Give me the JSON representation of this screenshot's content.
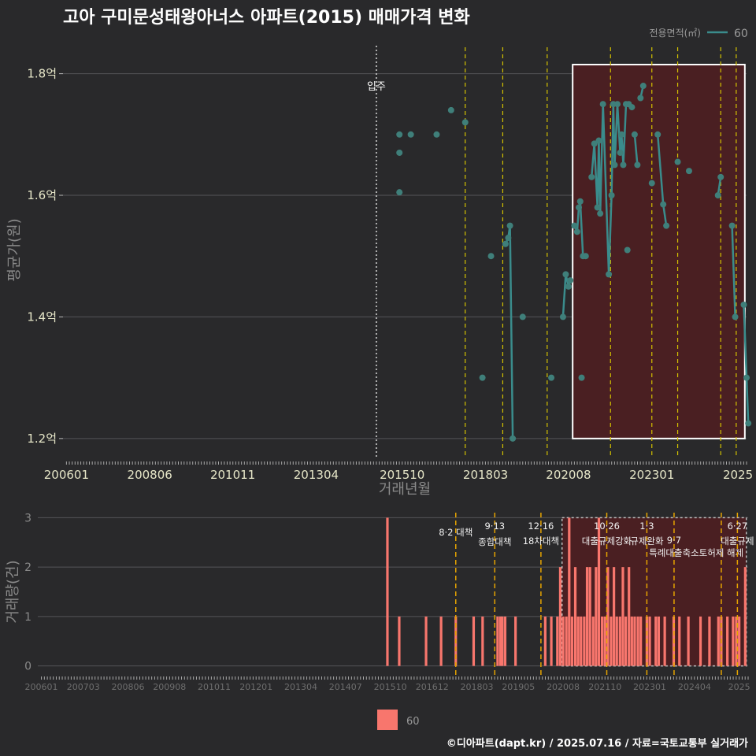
{
  "title": "고아 구미문성태왕아너스 아파트(2015) 매매가격 변화",
  "legend_top": {
    "title": "전용면적(㎡)",
    "label": "60"
  },
  "legend_bottom": {
    "label": "60"
  },
  "footer": "©디아파트(dapt.kr) / 2025.07.16 / 자료=국토교통부 실거래가",
  "colors": {
    "background": "#29292b",
    "price_line": "#3a8c8c",
    "price_point": "#3f7f7a",
    "bar": "#f8766d",
    "policy_line": "#d4c200",
    "policy_line_bottom": "#e6a400",
    "highlight_fill": "#4a1f22",
    "grid": "#555558",
    "move_in_line": "#d9d9d9"
  },
  "chart_data": [
    {
      "type": "line",
      "title": "고아 구미문성태왕아너스 아파트(2015) 매매가격 변화",
      "xlabel": "거래년월",
      "ylabel": "평균가(원)",
      "ylim": [
        1.17,
        1.85
      ],
      "xlim": [
        2005.9,
        2025.75
      ],
      "x_ticks": [
        {
          "label": "200601",
          "x": 2006.0
        },
        {
          "label": "200806",
          "x": 2008.42
        },
        {
          "label": "201011",
          "x": 2010.83
        },
        {
          "label": "201304",
          "x": 2013.25
        },
        {
          "label": "201510",
          "x": 2015.75
        },
        {
          "label": "201803",
          "x": 2018.17
        },
        {
          "label": "202008",
          "x": 2020.58
        },
        {
          "label": "202301",
          "x": 2023.0
        },
        {
          "label": "2025",
          "x": 2025.5
        }
      ],
      "y_ticks": [
        {
          "label": "1.2억",
          "y": 1.2
        },
        {
          "label": "1.4억",
          "y": 1.4
        },
        {
          "label": "1.6억",
          "y": 1.6
        },
        {
          "label": "1.8억",
          "y": 1.8
        }
      ],
      "annotation": {
        "label": "입주",
        "x": 2015.0
      },
      "highlight": {
        "x_start": 2020.7,
        "x_end": 2025.7,
        "y_start": 1.2,
        "y_end": 1.815
      },
      "policy_lines_x": [
        2017.58,
        2018.67,
        2019.96,
        2021.8,
        2023.0,
        2023.75,
        2025.0,
        2025.45
      ],
      "series": [
        {
          "name": "60",
          "points": [
            [
              2015.67,
              1.7
            ],
            [
              2015.67,
              1.67
            ],
            [
              2015.67,
              1.605
            ],
            [
              2016.0,
              1.7
            ],
            [
              2016.75,
              1.7
            ],
            [
              2017.17,
              1.74
            ],
            [
              2017.58,
              1.72
            ],
            [
              2018.08,
              1.3
            ],
            [
              2018.33,
              1.5
            ],
            [
              2018.75,
              1.52
            ],
            [
              2018.83,
              1.53
            ],
            [
              2018.88,
              1.55
            ],
            [
              2018.96,
              1.2
            ],
            [
              2019.25,
              1.4
            ],
            [
              2020.08,
              1.3
            ],
            [
              2020.42,
              1.4
            ],
            [
              2020.5,
              1.47
            ],
            [
              2020.58,
              1.45
            ],
            [
              2020.63,
              1.46
            ],
            [
              2020.75,
              1.55
            ],
            [
              2020.83,
              1.54
            ],
            [
              2020.88,
              1.58
            ],
            [
              2020.92,
              1.59
            ],
            [
              2020.96,
              1.3
            ],
            [
              2021.0,
              1.5
            ],
            [
              2021.08,
              1.5
            ],
            [
              2021.25,
              1.63
            ],
            [
              2021.33,
              1.685
            ],
            [
              2021.42,
              1.58
            ],
            [
              2021.46,
              1.69
            ],
            [
              2021.5,
              1.57
            ],
            [
              2021.58,
              1.75
            ],
            [
              2021.75,
              1.47
            ],
            [
              2021.83,
              1.6
            ],
            [
              2021.88,
              1.75
            ],
            [
              2021.92,
              1.65
            ],
            [
              2022.0,
              1.75
            ],
            [
              2022.08,
              1.67
            ],
            [
              2022.12,
              1.7
            ],
            [
              2022.17,
              1.65
            ],
            [
              2022.25,
              1.75
            ],
            [
              2022.29,
              1.51
            ],
            [
              2022.33,
              1.75
            ],
            [
              2022.42,
              1.745
            ],
            [
              2022.5,
              1.7
            ],
            [
              2022.58,
              1.65
            ],
            [
              2022.67,
              1.76
            ],
            [
              2022.75,
              1.78
            ],
            [
              2023.0,
              1.62
            ],
            [
              2023.17,
              1.7
            ],
            [
              2023.33,
              1.585
            ],
            [
              2023.42,
              1.55
            ],
            [
              2023.75,
              1.655
            ],
            [
              2024.08,
              1.64
            ],
            [
              2024.92,
              1.6
            ],
            [
              2025.0,
              1.63
            ],
            [
              2025.33,
              1.55
            ],
            [
              2025.42,
              1.4
            ],
            [
              2025.67,
              1.42
            ],
            [
              2025.75,
              1.3
            ],
            [
              2025.8,
              1.225
            ]
          ],
          "segments": [
            [
              [
                2018.75,
                1.52
              ],
              [
                2018.83,
                1.53
              ],
              [
                2018.88,
                1.55
              ],
              [
                2018.96,
                1.2
              ]
            ],
            [
              [
                2020.42,
                1.4
              ],
              [
                2020.5,
                1.47
              ],
              [
                2020.58,
                1.45
              ],
              [
                2020.63,
                1.46
              ]
            ],
            [
              [
                2020.75,
                1.55
              ],
              [
                2020.83,
                1.54
              ],
              [
                2020.88,
                1.58
              ],
              [
                2020.92,
                1.59
              ],
              [
                2021.0,
                1.5
              ]
            ],
            [
              [
                2021.25,
                1.63
              ],
              [
                2021.33,
                1.685
              ],
              [
                2021.42,
                1.58
              ],
              [
                2021.46,
                1.69
              ],
              [
                2021.5,
                1.57
              ],
              [
                2021.58,
                1.75
              ],
              [
                2021.75,
                1.47
              ],
              [
                2021.83,
                1.6
              ],
              [
                2021.88,
                1.75
              ],
              [
                2021.92,
                1.65
              ],
              [
                2022.0,
                1.75
              ],
              [
                2022.08,
                1.67
              ],
              [
                2022.12,
                1.7
              ],
              [
                2022.17,
                1.65
              ],
              [
                2022.25,
                1.75
              ]
            ],
            [
              [
                2022.33,
                1.75
              ],
              [
                2022.42,
                1.745
              ]
            ],
            [
              [
                2022.5,
                1.7
              ],
              [
                2022.58,
                1.65
              ]
            ],
            [
              [
                2022.67,
                1.76
              ],
              [
                2022.75,
                1.78
              ]
            ],
            [
              [
                2023.17,
                1.7
              ],
              [
                2023.33,
                1.585
              ],
              [
                2023.42,
                1.55
              ]
            ],
            [
              [
                2024.92,
                1.6
              ],
              [
                2025.0,
                1.63
              ]
            ],
            [
              [
                2025.33,
                1.55
              ],
              [
                2025.42,
                1.4
              ]
            ],
            [
              [
                2025.67,
                1.42
              ],
              [
                2025.75,
                1.3
              ],
              [
                2025.8,
                1.225
              ]
            ]
          ]
        }
      ]
    },
    {
      "type": "bar",
      "ylabel": "거래량(건)",
      "ylim": [
        -0.15,
        3.15
      ],
      "xlim": [
        2005.9,
        2025.75
      ],
      "x_ticks": [
        {
          "label": "200601",
          "x": 2006.0
        },
        {
          "label": "200703",
          "x": 2007.17
        },
        {
          "label": "200806",
          "x": 2008.42
        },
        {
          "label": "200908",
          "x": 2009.58
        },
        {
          "label": "201011",
          "x": 2010.83
        },
        {
          "label": "201201",
          "x": 2012.0
        },
        {
          "label": "201304",
          "x": 2013.25
        },
        {
          "label": "201407",
          "x": 2014.5
        },
        {
          "label": "201510",
          "x": 2015.75
        },
        {
          "label": "201612",
          "x": 2016.92
        },
        {
          "label": "201803",
          "x": 2018.17
        },
        {
          "label": "201905",
          "x": 2019.33
        },
        {
          "label": "202008",
          "x": 2020.58
        },
        {
          "label": "202110",
          "x": 2021.75
        },
        {
          "label": "202301",
          "x": 2023.0
        },
        {
          "label": "202404",
          "x": 2024.25
        },
        {
          "label": "2025",
          "x": 2025.5
        }
      ],
      "y_ticks": [
        {
          "label": "0",
          "y": 0
        },
        {
          "label": "1",
          "y": 1
        },
        {
          "label": "2",
          "y": 2
        },
        {
          "label": "3",
          "y": 3
        }
      ],
      "highlight": {
        "x_start": 2020.55,
        "x_end": 2025.7,
        "y_start": 0,
        "y_end": 3
      },
      "policy_lines": [
        {
          "x": 2017.58,
          "labels": [
            "8·2 대책"
          ]
        },
        {
          "x": 2018.67,
          "labels": [
            "9·13",
            "종합대책"
          ]
        },
        {
          "x": 2019.96,
          "labels": [
            "12·16",
            "18차대책"
          ]
        },
        {
          "x": 2021.8,
          "labels": [
            "10·26",
            "대출규제강화"
          ]
        },
        {
          "x": 2022.92,
          "labels": [
            "1·3",
            "규제완화"
          ]
        },
        {
          "x": 2023.68,
          "labels": [
            "9·7",
            "특례대출축소"
          ]
        },
        {
          "x": 2025.0,
          "labels": [
            "토허제 해제"
          ]
        },
        {
          "x": 2025.45,
          "labels": [
            "6·27",
            "대출규제"
          ]
        }
      ],
      "series": [
        {
          "name": "60",
          "bars": [
            [
              2015.67,
              3
            ],
            [
              2016.0,
              1
            ],
            [
              2016.75,
              1
            ],
            [
              2017.17,
              1
            ],
            [
              2017.58,
              1
            ],
            [
              2018.08,
              1
            ],
            [
              2018.33,
              1
            ],
            [
              2018.75,
              1
            ],
            [
              2018.83,
              1
            ],
            [
              2018.88,
              1
            ],
            [
              2018.96,
              1
            ],
            [
              2019.25,
              1
            ],
            [
              2020.08,
              1
            ],
            [
              2020.25,
              1
            ],
            [
              2020.42,
              1
            ],
            [
              2020.5,
              2
            ],
            [
              2020.58,
              1
            ],
            [
              2020.67,
              1
            ],
            [
              2020.75,
              3
            ],
            [
              2020.83,
              1
            ],
            [
              2020.92,
              2
            ],
            [
              2021.0,
              1
            ],
            [
              2021.08,
              1
            ],
            [
              2021.17,
              1
            ],
            [
              2021.25,
              2
            ],
            [
              2021.33,
              2
            ],
            [
              2021.42,
              1
            ],
            [
              2021.5,
              2
            ],
            [
              2021.58,
              3
            ],
            [
              2021.67,
              1
            ],
            [
              2021.75,
              1
            ],
            [
              2021.83,
              2
            ],
            [
              2021.92,
              1
            ],
            [
              2022.0,
              2
            ],
            [
              2022.08,
              1
            ],
            [
              2022.17,
              1
            ],
            [
              2022.25,
              2
            ],
            [
              2022.33,
              1
            ],
            [
              2022.42,
              2
            ],
            [
              2022.5,
              1
            ],
            [
              2022.58,
              1
            ],
            [
              2022.67,
              1
            ],
            [
              2022.75,
              1
            ],
            [
              2022.92,
              1
            ],
            [
              2023.0,
              1
            ],
            [
              2023.17,
              1
            ],
            [
              2023.25,
              1
            ],
            [
              2023.42,
              1
            ],
            [
              2023.67,
              1
            ],
            [
              2023.83,
              1
            ],
            [
              2024.08,
              1
            ],
            [
              2024.42,
              1
            ],
            [
              2024.67,
              1
            ],
            [
              2024.92,
              1
            ],
            [
              2025.0,
              1
            ],
            [
              2025.17,
              1
            ],
            [
              2025.33,
              1
            ],
            [
              2025.42,
              1
            ],
            [
              2025.5,
              1
            ],
            [
              2025.67,
              2
            ]
          ]
        }
      ]
    }
  ]
}
